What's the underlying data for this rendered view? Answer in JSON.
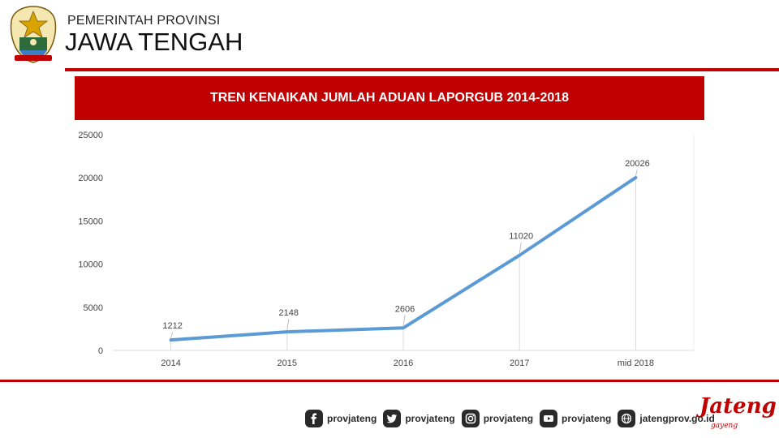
{
  "header": {
    "line1": "PEMERINTAH PROVINSI",
    "line2": "JAWA TENGAH"
  },
  "colors": {
    "accent_red": "#c00000",
    "line_blue": "#5b9bd5",
    "dark": "#2a2a2a"
  },
  "chart_data": {
    "type": "line",
    "title": "TREN KENAIKAN JUMLAH ADUAN LAPORGUB 2014-2018",
    "categories": [
      "2014",
      "2015",
      "2016",
      "2017",
      "mid 2018"
    ],
    "values": [
      1212,
      2148,
      2606,
      11020,
      20026
    ],
    "data_labels": [
      "1212",
      "2148",
      "2606",
      "11020",
      "20026"
    ],
    "ylim": [
      0,
      25000
    ],
    "yticks": [
      0,
      5000,
      10000,
      15000,
      20000,
      25000
    ],
    "ytick_labels": [
      "0",
      "5000",
      "10000",
      "15000",
      "20000",
      "25000"
    ],
    "xlabel": "",
    "ylabel": "",
    "grid": false,
    "drop_lines": true
  },
  "footer": {
    "social": [
      {
        "icon": "facebook-icon",
        "label": "provjateng"
      },
      {
        "icon": "twitter-icon",
        "label": "provjateng"
      },
      {
        "icon": "instagram-icon",
        "label": "provjateng"
      },
      {
        "icon": "youtube-icon",
        "label": "provjateng"
      },
      {
        "icon": "globe-icon",
        "label": "jatengprov.go.id"
      }
    ],
    "brand": "Jateng",
    "brand_sub": "gayeng"
  }
}
